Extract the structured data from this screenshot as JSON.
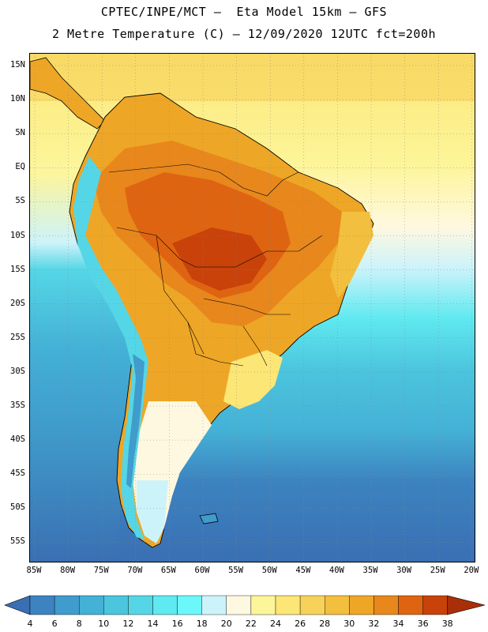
{
  "header": {
    "line1": "CPTEC/INPE/MCT –  Eta Model 15km – GFS",
    "line2": "2 Metre Temperature (C) – 12/09/2020 12UTC fct=200h"
  },
  "map": {
    "lat_labels": [
      "15N",
      "10N",
      "5N",
      "EQ",
      "5S",
      "10S",
      "15S",
      "20S",
      "25S",
      "30S",
      "35S",
      "40S",
      "45S",
      "50S",
      "55S"
    ],
    "lon_labels": [
      "85W",
      "80W",
      "75W",
      "70W",
      "65W",
      "60W",
      "55W",
      "50W",
      "45W",
      "40W",
      "35W",
      "30W",
      "25W",
      "20W"
    ]
  },
  "colorbar": {
    "labels": [
      "4",
      "6",
      "8",
      "10",
      "12",
      "14",
      "16",
      "18",
      "20",
      "22",
      "24",
      "26",
      "28",
      "30",
      "32",
      "34",
      "36",
      "38"
    ],
    "colors": [
      "#3a6fb3",
      "#3c83c0",
      "#3f9ccc",
      "#44b1d6",
      "#4cc5de",
      "#55d6e6",
      "#5fe9f0",
      "#6cf7fb",
      "#cdf3fa",
      "#fff8e0",
      "#fdf59a",
      "#fbe676",
      "#f6d25a",
      "#f2bf3e",
      "#eea626",
      "#e8871c",
      "#de6412",
      "#c8420a",
      "#a82f08"
    ]
  }
}
